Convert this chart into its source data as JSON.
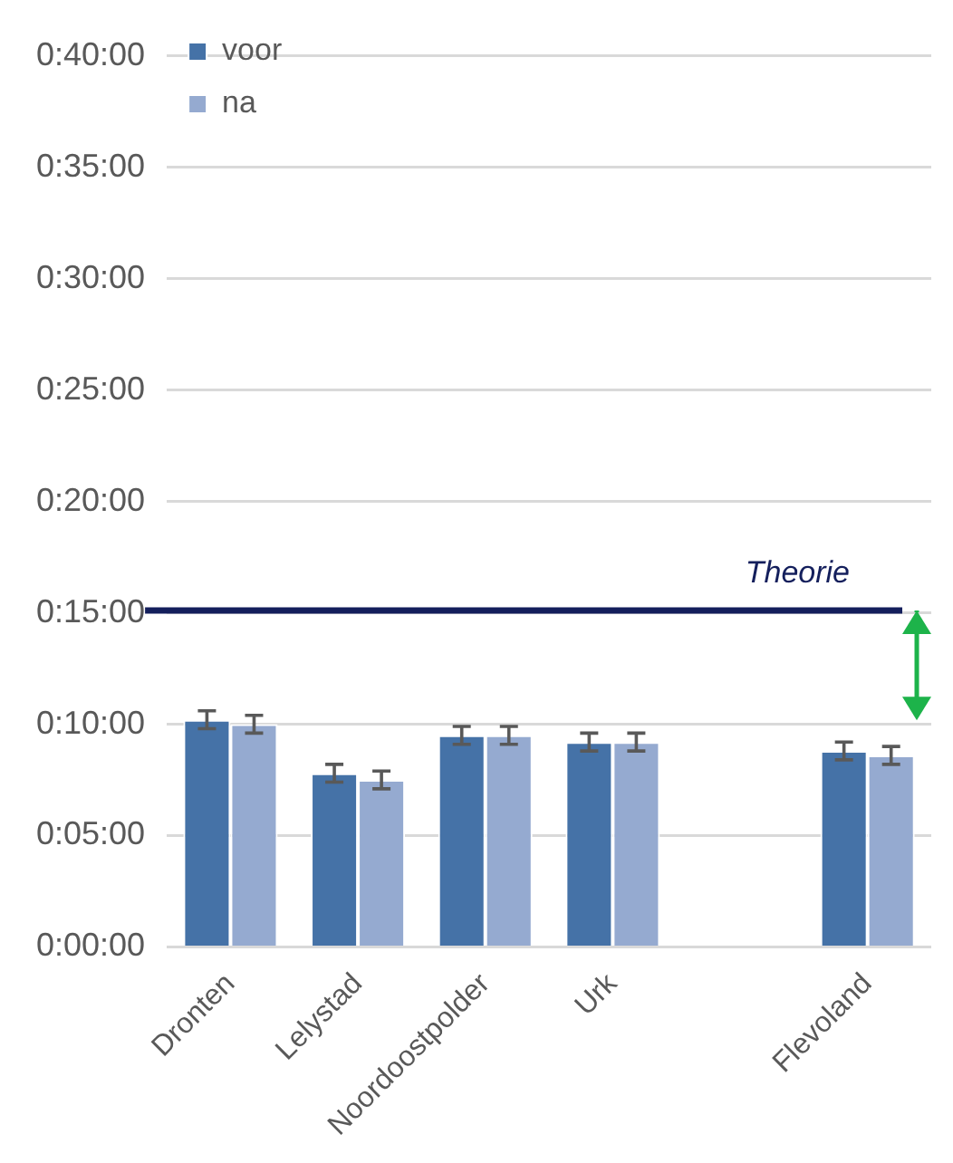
{
  "chart_data": {
    "type": "bar",
    "categories": [
      "Dronten",
      "Lelystad",
      "Noordoostpolder",
      "Urk",
      null,
      "Flevoland"
    ],
    "series": [
      {
        "name": "voor",
        "color": "#4572a7",
        "values": [
          10.2,
          7.8,
          9.5,
          9.2,
          null,
          8.8
        ],
        "errors": [
          0.4,
          0.4,
          0.4,
          0.4,
          null,
          0.4
        ]
      },
      {
        "name": "na",
        "color": "#95aad0",
        "values": [
          10.0,
          7.5,
          9.5,
          9.2,
          null,
          8.6
        ],
        "errors": [
          0.4,
          0.4,
          0.4,
          0.4,
          null,
          0.4
        ]
      }
    ],
    "ylim": [
      0,
      40
    ],
    "yticks": [
      {
        "value": 0,
        "label": "0:00:00"
      },
      {
        "value": 5,
        "label": "0:05:00"
      },
      {
        "value": 10,
        "label": "0:10:00"
      },
      {
        "value": 15,
        "label": "0:15:00"
      },
      {
        "value": 20,
        "label": "0:20:00"
      },
      {
        "value": 25,
        "label": "0:25:00"
      },
      {
        "value": 30,
        "label": "0:30:00"
      },
      {
        "value": 35,
        "label": "0:35:00"
      },
      {
        "value": 40,
        "label": "0:40:00"
      }
    ],
    "ref_lines": [
      {
        "axis": "y",
        "value": 15.1,
        "label": "Theorie",
        "color": "#141f5c"
      }
    ],
    "grid": "y",
    "legend": "top left"
  }
}
